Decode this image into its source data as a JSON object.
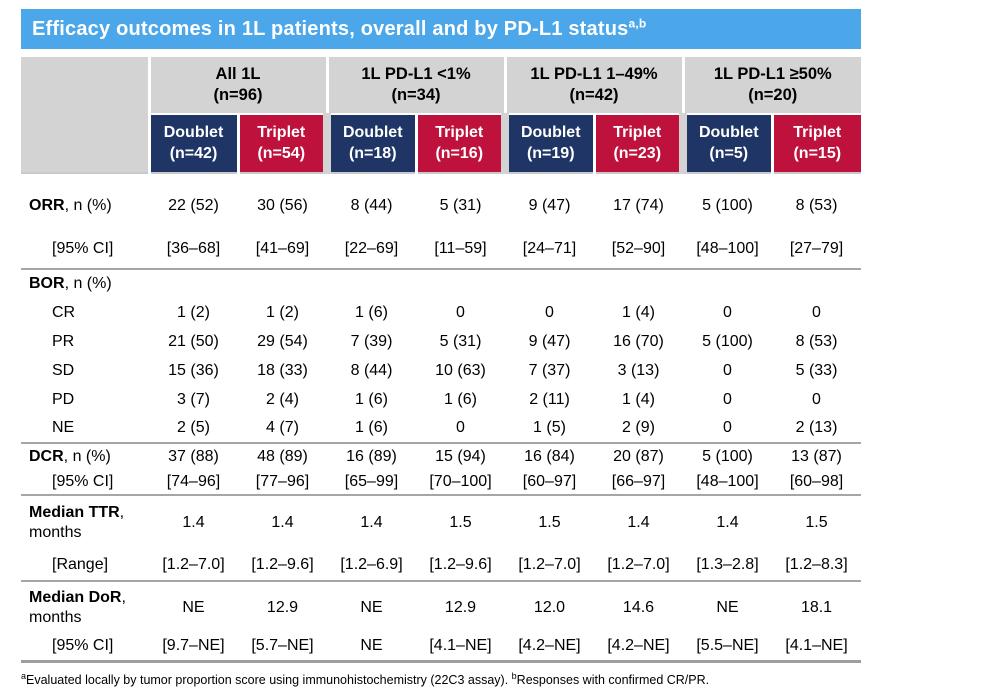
{
  "title": {
    "text": "Efficacy outcomes in 1L patients, overall and by PD-L1 status",
    "superscript": "a,b"
  },
  "colors": {
    "title_bar_bg": "#4BA6EA",
    "header_gray": "#D3D3D3",
    "doublet_bg": "#1E3565",
    "triplet_bg": "#BE123C",
    "rule_gray": "#A6A6A6"
  },
  "table": {
    "groups": [
      {
        "label": "All 1L",
        "n": "(n=96)"
      },
      {
        "label": "1L PD-L1 <1%",
        "n": "(n=34)"
      },
      {
        "label": "1L PD-L1 1–49%",
        "n": "(n=42)"
      },
      {
        "label": "1L PD-L1 ≥50%",
        "n": "(n=20)"
      }
    ],
    "subheaders": [
      {
        "label": "Doublet",
        "n": "(n=42)",
        "variant": "doublet"
      },
      {
        "label": "Triplet",
        "n": "(n=54)",
        "variant": "triplet"
      },
      {
        "label": "Doublet",
        "n": "(n=18)",
        "variant": "doublet"
      },
      {
        "label": "Triplet",
        "n": "(n=16)",
        "variant": "triplet"
      },
      {
        "label": "Doublet",
        "n": "(n=19)",
        "variant": "doublet"
      },
      {
        "label": "Triplet",
        "n": "(n=23)",
        "variant": "triplet"
      },
      {
        "label": "Doublet",
        "n": "(n=5)",
        "variant": "doublet"
      },
      {
        "label": "Triplet",
        "n": "(n=15)",
        "variant": "triplet"
      }
    ],
    "rows": [
      {
        "bold": "ORR",
        "rest": ", n (%)",
        "line2": "",
        "indent": false,
        "rule_after": false,
        "thick_rule_after": false,
        "values": [
          "22 (52)",
          "30 (56)",
          "8 (44)",
          "5 (31)",
          "9 (47)",
          "17 (74)",
          "5 (100)",
          "8 (53)"
        ]
      },
      {
        "bold": "",
        "rest": "[95% CI]",
        "line2": "",
        "indent": true,
        "rule_after": true,
        "thick_rule_after": false,
        "values": [
          "[36–68]",
          "[41–69]",
          "[22–69]",
          "[11–59]",
          "[24–71]",
          "[52–90]",
          "[48–100]",
          "[27–79]"
        ]
      },
      {
        "bold": "BOR",
        "rest": ", n (%)",
        "line2": "",
        "indent": false,
        "rule_after": false,
        "thick_rule_after": false,
        "values": [
          "",
          "",
          "",
          "",
          "",
          "",
          "",
          ""
        ]
      },
      {
        "bold": "",
        "rest": "CR",
        "line2": "",
        "indent": true,
        "rule_after": false,
        "thick_rule_after": false,
        "values": [
          "1 (2)",
          "1 (2)",
          "1 (6)",
          "0",
          "0",
          "1 (4)",
          "0",
          "0"
        ]
      },
      {
        "bold": "",
        "rest": "PR",
        "line2": "",
        "indent": true,
        "rule_after": false,
        "thick_rule_after": false,
        "values": [
          "21 (50)",
          "29 (54)",
          "7 (39)",
          "5 (31)",
          "9 (47)",
          "16 (70)",
          "5 (100)",
          "8 (53)"
        ]
      },
      {
        "bold": "",
        "rest": "SD",
        "line2": "",
        "indent": true,
        "rule_after": false,
        "thick_rule_after": false,
        "values": [
          "15 (36)",
          "18 (33)",
          "8 (44)",
          "10 (63)",
          "7 (37)",
          "3 (13)",
          "0",
          "5 (33)"
        ]
      },
      {
        "bold": "",
        "rest": "PD",
        "line2": "",
        "indent": true,
        "rule_after": false,
        "thick_rule_after": false,
        "values": [
          "3 (7)",
          "2 (4)",
          "1 (6)",
          "1 (6)",
          "2 (11)",
          "1 (4)",
          "0",
          "0"
        ]
      },
      {
        "bold": "",
        "rest": "NE",
        "line2": "",
        "indent": true,
        "rule_after": true,
        "thick_rule_after": false,
        "values": [
          "2 (5)",
          "4 (7)",
          "1 (6)",
          "0",
          "1 (5)",
          "2 (9)",
          "0",
          "2 (13)"
        ]
      },
      {
        "bold": "DCR",
        "rest": ", n (%)",
        "line2": "",
        "indent": false,
        "rule_after": false,
        "thick_rule_after": false,
        "values": [
          "37 (88)",
          "48 (89)",
          "16 (89)",
          "15 (94)",
          "16 (84)",
          "20 (87)",
          "5 (100)",
          "13 (87)"
        ]
      },
      {
        "bold": "",
        "rest": "[95% CI]",
        "line2": "",
        "indent": true,
        "rule_after": true,
        "thick_rule_after": false,
        "values": [
          "[74–96]",
          "[77–96]",
          "[65–99]",
          "[70–100]",
          "[60–97]",
          "[66–97]",
          "[48–100]",
          "[60–98]"
        ]
      },
      {
        "bold": "Median TTR",
        "rest": ",",
        "line2": "months",
        "indent": false,
        "rule_after": false,
        "thick_rule_after": false,
        "values": [
          "1.4",
          "1.4",
          "1.4",
          "1.5",
          "1.5",
          "1.4",
          "1.4",
          "1.5"
        ]
      },
      {
        "bold": "",
        "rest": "[Range]",
        "line2": "",
        "indent": true,
        "rule_after": true,
        "thick_rule_after": false,
        "values": [
          "[1.2–7.0]",
          "[1.2–9.6]",
          "[1.2–6.9]",
          "[1.2–9.6]",
          "[1.2–7.0]",
          "[1.2–7.0]",
          "[1.3–2.8]",
          "[1.2–8.3]"
        ]
      },
      {
        "bold": "Median DoR",
        "rest": ",",
        "line2": "months",
        "indent": false,
        "rule_after": false,
        "thick_rule_after": false,
        "values": [
          "NE",
          "12.9",
          "NE",
          "12.9",
          "12.0",
          "14.6",
          "NE",
          "18.1"
        ]
      },
      {
        "bold": "",
        "rest": "[95% CI]",
        "line2": "",
        "indent": true,
        "rule_after": false,
        "thick_rule_after": true,
        "values": [
          "[9.7–NE]",
          "[5.7–NE]",
          "NE",
          "[4.1–NE]",
          "[4.2–NE]",
          "[4.2–NE]",
          "[5.5–NE]",
          "[4.1–NE]"
        ]
      }
    ]
  },
  "footnote": {
    "sup_a": "a",
    "text_a": "Evaluated locally by tumor proportion score using immunohistochemistry (22C3 assay). ",
    "sup_b": "b",
    "text_b": "Responses with confirmed CR/PR."
  }
}
